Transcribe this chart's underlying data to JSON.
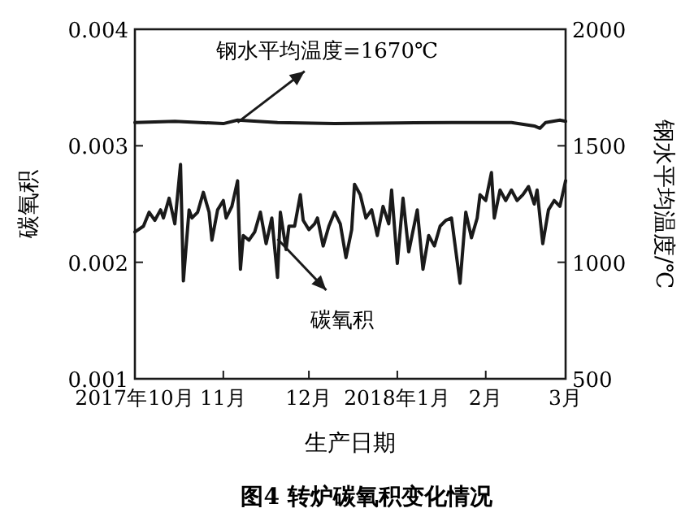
{
  "chart_data": {
    "type": "line",
    "title": "图4  转炉碳氧积变化情况",
    "xlabel": "生产日期",
    "ylabel": "碳氧积",
    "y2label": "钢水平均温度/℃",
    "xlim": [
      "2017-10-01",
      "2018-03-01"
    ],
    "xticks": [
      {
        "value": "2017-10-01",
        "label": "2017年10月"
      },
      {
        "value": "2017-11-01",
        "label": "11月"
      },
      {
        "value": "2017-12-01",
        "label": "12月"
      },
      {
        "value": "2018-01-01",
        "label": "2018年1月"
      },
      {
        "value": "2018-02-01",
        "label": "2月"
      },
      {
        "value": "2018-03-01",
        "label": "3月"
      }
    ],
    "ylim": [
      0.001,
      0.004
    ],
    "yticks": [
      0.001,
      0.002,
      0.003,
      0.004
    ],
    "y2lim": [
      500,
      2000
    ],
    "y2ticks": [
      500,
      1000,
      1500,
      2000
    ],
    "annotations": [
      {
        "text": "钢水平均温度=1670℃",
        "x": "2017-11-06",
        "y": 0.0032
      },
      {
        "text": "碳氧积",
        "x": "2017-11-20",
        "y": 0.0022
      }
    ],
    "series": [
      {
        "color": "#1a1a1a",
        "axis": "y2",
        "x": [
          "2017-10-01",
          "2017-10-15",
          "2017-11-01",
          "2017-11-06",
          "2017-11-20",
          "2017-12-10",
          "2018-01-01",
          "2018-01-20",
          "2018-02-10",
          "2018-02-18",
          "2018-02-20",
          "2018-02-22",
          "2018-02-27",
          "2018-03-01"
        ],
        "values": [
          1600,
          1605,
          1595,
          1610,
          1600,
          1595,
          1598,
          1600,
          1600,
          1585,
          1575,
          1600,
          1610,
          1605
        ]
      },
      {
        "color": "#1a1a1a",
        "x": [
          "2017-10-01",
          "2017-10-04",
          "2017-10-06",
          "2017-10-08",
          "2017-10-10",
          "2017-10-11",
          "2017-10-13",
          "2017-10-15",
          "2017-10-17",
          "2017-10-18",
          "2017-10-20",
          "2017-10-21",
          "2017-10-23",
          "2017-10-25",
          "2017-10-27",
          "2017-10-28",
          "2017-10-30",
          "2017-11-01",
          "2017-11-02",
          "2017-11-04",
          "2017-11-06",
          "2017-11-07",
          "2017-11-08",
          "2017-11-10",
          "2017-11-12",
          "2017-11-14",
          "2017-11-16",
          "2017-11-18",
          "2017-11-20",
          "2017-11-21",
          "2017-11-23",
          "2017-11-24",
          "2017-11-26",
          "2017-11-28",
          "2017-11-29",
          "2017-12-01",
          "2017-12-03",
          "2017-12-04",
          "2017-12-06",
          "2017-12-08",
          "2017-12-10",
          "2017-12-12",
          "2017-12-14",
          "2017-12-16",
          "2017-12-17",
          "2017-12-19",
          "2017-12-21",
          "2017-12-23",
          "2017-12-25",
          "2017-12-27",
          "2017-12-29",
          "2017-12-30",
          "2018-01-01",
          "2018-01-03",
          "2018-01-05",
          "2018-01-07",
          "2018-01-08",
          "2018-01-10",
          "2018-01-12",
          "2018-01-14",
          "2018-01-16",
          "2018-01-18",
          "2018-01-20",
          "2018-01-23",
          "2018-01-25",
          "2018-01-27",
          "2018-01-29",
          "2018-01-30",
          "2018-02-01",
          "2018-02-03",
          "2018-02-04",
          "2018-02-06",
          "2018-02-08",
          "2018-02-10",
          "2018-02-12",
          "2018-02-14",
          "2018-02-16",
          "2018-02-18",
          "2018-02-19",
          "2018-02-21",
          "2018-02-23",
          "2018-02-25",
          "2018-02-27",
          "2018-03-01"
        ],
        "values": [
          0.00226,
          0.00231,
          0.00243,
          0.00236,
          0.00245,
          0.00238,
          0.00255,
          0.00233,
          0.00284,
          0.00184,
          0.00245,
          0.00238,
          0.00243,
          0.0026,
          0.00243,
          0.00219,
          0.00245,
          0.00253,
          0.00238,
          0.00248,
          0.0027,
          0.00194,
          0.00223,
          0.00219,
          0.00226,
          0.00243,
          0.00216,
          0.00238,
          0.00187,
          0.00243,
          0.00211,
          0.00231,
          0.00231,
          0.00258,
          0.00236,
          0.00228,
          0.00233,
          0.00238,
          0.00214,
          0.00231,
          0.00243,
          0.00233,
          0.00204,
          0.00228,
          0.00267,
          0.00258,
          0.00238,
          0.00245,
          0.00223,
          0.00248,
          0.00233,
          0.00262,
          0.00199,
          0.00255,
          0.00209,
          0.00233,
          0.00245,
          0.00194,
          0.00223,
          0.00214,
          0.00231,
          0.00236,
          0.00238,
          0.00182,
          0.00243,
          0.00221,
          0.00238,
          0.00258,
          0.00253,
          0.00277,
          0.00238,
          0.00262,
          0.00253,
          0.00262,
          0.00253,
          0.00258,
          0.00265,
          0.0025,
          0.00262,
          0.00216,
          0.00245,
          0.00253,
          0.00248,
          0.0027
        ]
      }
    ]
  }
}
